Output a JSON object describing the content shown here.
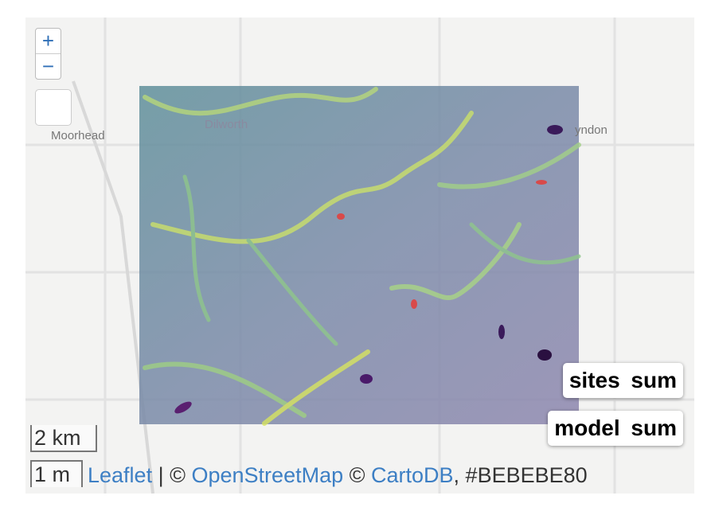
{
  "zoom": {
    "in": "+",
    "out": "−"
  },
  "places": [
    "Moorhead",
    "Dilworth",
    "yndon"
  ],
  "legends": [
    "sites sum",
    "model sum"
  ],
  "scale": {
    "metric": "2 km",
    "imperial": "1 m"
  },
  "attribution": {
    "leaflet": "Leaflet",
    "sep1": " | © ",
    "osm": "OpenStreetMap",
    "sep2": " © ",
    "carto": "CartoDB",
    "tail": ", #BEBEBE80"
  }
}
